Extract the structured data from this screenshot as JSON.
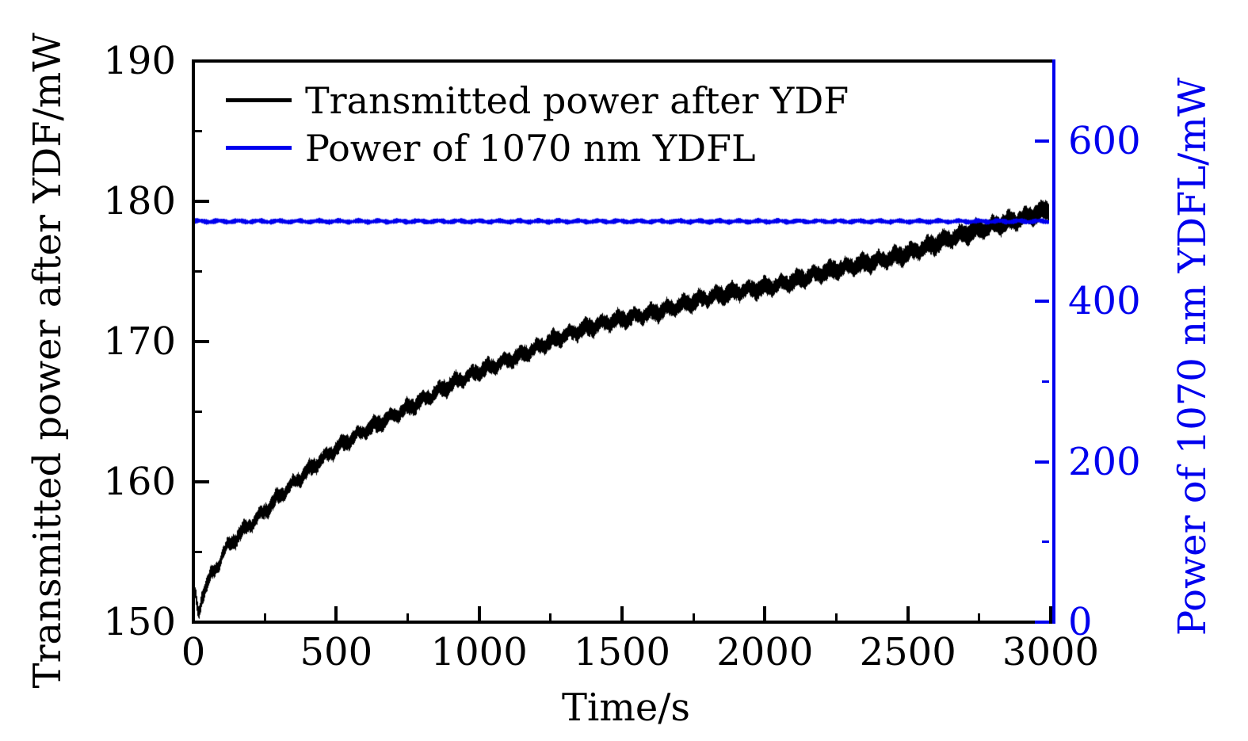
{
  "figure": {
    "background": "#ffffff",
    "frame_color": "#000000"
  },
  "colors": {
    "black_series": "#000000",
    "blue_series": "#0000ee"
  },
  "legend": [
    {
      "label": "Transmitted power after YDF",
      "color": "#000000"
    },
    {
      "label": "Power of 1070 nm YDFL",
      "color": "#0000ee"
    }
  ],
  "axes": {
    "x": {
      "title": "Time/s",
      "min": 0,
      "max": 3000,
      "major_ticks": [
        0,
        500,
        1000,
        1500,
        2000,
        2500,
        3000
      ],
      "major_tick_labels": [
        "0",
        "500",
        "1000",
        "1500",
        "2000",
        "2500",
        "3000"
      ],
      "minor_ticks": [
        250,
        750,
        1250,
        1750,
        2250,
        2750
      ],
      "color": "#000000"
    },
    "y_left": {
      "title": "Transmitted power after YDF/mW",
      "min": 150,
      "max": 190,
      "major_ticks": [
        150,
        160,
        170,
        180,
        190
      ],
      "major_tick_labels": [
        "150",
        "160",
        "170",
        "180",
        "190"
      ],
      "minor_ticks": [
        155,
        165,
        175,
        185
      ],
      "color": "#000000"
    },
    "y_right": {
      "title": "Power of 1070 nm YDFL/mW",
      "min": 0,
      "max": 700,
      "major_ticks": [
        0,
        200,
        400,
        600
      ],
      "major_tick_labels": [
        "0",
        "200",
        "400",
        "600"
      ],
      "minor_ticks": [
        100,
        300,
        500
      ],
      "color": "#0000ee"
    }
  },
  "chart_data": {
    "type": "line",
    "title": "",
    "xlabel": "Time/s",
    "ylabel_left": "Transmitted power after YDF/mW",
    "ylabel_right": "Power of 1070 nm YDFL/mW",
    "x_range": [
      0,
      3000
    ],
    "y_left_range": [
      150,
      190
    ],
    "y_right_range": [
      0,
      700
    ],
    "grid": false,
    "legend_position": "top-left-inside",
    "series": [
      {
        "name": "Transmitted power after YDF",
        "axis": "left",
        "color": "#000000",
        "style": "noisy-band",
        "x": [
          0,
          8,
          18,
          30,
          45,
          60,
          80,
          108,
          140,
          170,
          200,
          250,
          300,
          362,
          430,
          500,
          600,
          700,
          800,
          900,
          1000,
          1100,
          1267,
          1400,
          1500,
          1700,
          1900,
          2100,
          2300,
          2500,
          2700,
          2850,
          3000
        ],
        "y": [
          152.4,
          151.6,
          150.7,
          151.9,
          152.6,
          153.2,
          153.8,
          155.0,
          155.7,
          156.4,
          157.0,
          158.0,
          159.1,
          160.2,
          161.3,
          162.3,
          163.6,
          164.8,
          165.9,
          166.9,
          167.8,
          168.7,
          170.2,
          171.0,
          171.6,
          172.6,
          173.5,
          174.4,
          175.3,
          176.4,
          177.6,
          178.6,
          179.5
        ],
        "band_halfwidth_mW": 0.35,
        "ripple_period_s": 57,
        "ripple_amp_mW": 0.2
      },
      {
        "name": "Power of 1070 nm YDFL",
        "axis": "right",
        "color": "#0000ee",
        "style": "noisy-band",
        "x": [
          0,
          3000
        ],
        "y": [
          500,
          500
        ],
        "band_halfwidth_mW": 2.5,
        "ripple_period_s": 70,
        "ripple_amp_mW": 0.9
      }
    ]
  }
}
